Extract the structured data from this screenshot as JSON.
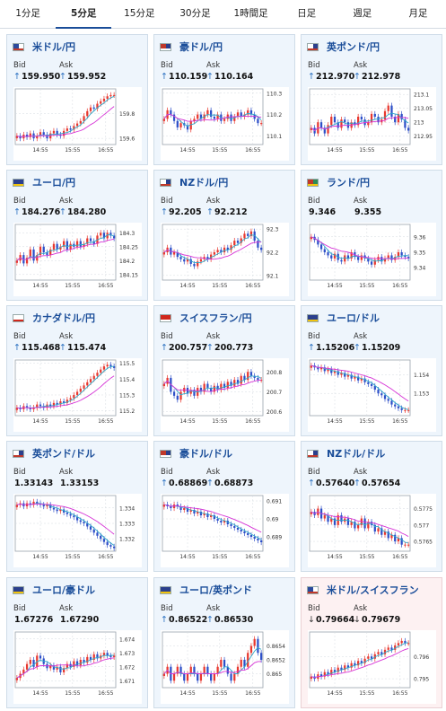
{
  "tabs": [
    "1分足",
    "5分足",
    "15分足",
    "30分足",
    "1時間足",
    "日足",
    "週足",
    "月足"
  ],
  "active_tab": "5分足",
  "labels": {
    "bid": "Bid",
    "ask": "Ask"
  },
  "colors": {
    "up": "#e8382f",
    "down": "#2d4fc8",
    "ma1": "#2fa9c9",
    "ma2": "#d633d6",
    "accent": "#1a4d99"
  },
  "cards": [
    {
      "pair": "米ドル/円",
      "flag_icon": "us-flag-icon",
      "bid": "159.950",
      "ask": "159.952",
      "dir": "up",
      "bid_arrow": "↑",
      "ask_arrow": "↑",
      "chart_data": {
        "type": "candlestick",
        "x_ticks": [
          "14:55",
          "15:55",
          "16:55"
        ],
        "y_ticks": [
          "159.8",
          "159.6"
        ],
        "ylim": [
          159.55,
          160.0
        ],
        "close": [
          159.62,
          159.6,
          159.63,
          159.61,
          159.64,
          159.6,
          159.62,
          159.65,
          159.63,
          159.6,
          159.64,
          159.66,
          159.63,
          159.62,
          159.66,
          159.68,
          159.67,
          159.7,
          159.72,
          159.74,
          159.78,
          159.82,
          159.85,
          159.84,
          159.88,
          159.9,
          159.92,
          159.94,
          159.95,
          159.95
        ]
      }
    },
    {
      "pair": "豪ドル/円",
      "flag_icon": "au-flag-icon",
      "bid": "110.159",
      "ask": "110.164",
      "dir": "up",
      "bid_arrow": "↑",
      "ask_arrow": "↑",
      "chart_data": {
        "type": "candlestick",
        "x_ticks": [
          "14:55",
          "15:55",
          "16:55"
        ],
        "y_ticks": [
          "110.3",
          "110.2",
          "110.1"
        ],
        "ylim": [
          110.06,
          110.32
        ],
        "close": [
          110.18,
          110.22,
          110.2,
          110.17,
          110.14,
          110.16,
          110.15,
          110.13,
          110.17,
          110.18,
          110.2,
          110.18,
          110.2,
          110.22,
          110.19,
          110.18,
          110.2,
          110.17,
          110.18,
          110.2,
          110.17,
          110.19,
          110.21,
          110.19,
          110.2,
          110.22,
          110.2,
          110.18,
          110.16,
          110.16
        ]
      }
    },
    {
      "pair": "英ポンド/円",
      "flag_icon": "gb-flag-icon",
      "bid": "212.970",
      "ask": "212.978",
      "dir": "up",
      "bid_arrow": "↑",
      "ask_arrow": "↑",
      "chart_data": {
        "type": "candlestick",
        "x_ticks": [
          "14:55",
          "15:55",
          "16:55"
        ],
        "y_ticks": [
          "213.1",
          "213.05",
          "213",
          "212.95"
        ],
        "ylim": [
          212.92,
          213.12
        ],
        "close": [
          212.98,
          212.96,
          213.0,
          212.98,
          212.96,
          212.99,
          213.02,
          213.0,
          212.98,
          213.01,
          213.0,
          212.98,
          213.0,
          212.99,
          213.02,
          213.01,
          212.99,
          213.0,
          213.03,
          213.02,
          213.0,
          213.01,
          213.04,
          213.06,
          213.02,
          213.0,
          213.03,
          213.01,
          212.98,
          212.97
        ]
      }
    },
    {
      "pair": "ユーロ/円",
      "flag_icon": "eu-flag-icon",
      "bid": "184.276",
      "ask": "184.280",
      "dir": "up",
      "bid_arrow": "↑",
      "ask_arrow": "↑",
      "chart_data": {
        "type": "candlestick",
        "x_ticks": [
          "14:55",
          "15:55",
          "16:55"
        ],
        "y_ticks": [
          "184.3",
          "184.25",
          "184.2",
          "184.15"
        ],
        "ylim": [
          184.13,
          184.33
        ],
        "close": [
          184.2,
          184.22,
          184.19,
          184.21,
          184.24,
          184.2,
          184.22,
          184.25,
          184.23,
          184.22,
          184.24,
          184.26,
          184.24,
          184.25,
          184.27,
          184.24,
          184.26,
          184.25,
          184.27,
          184.25,
          184.26,
          184.28,
          184.27,
          184.26,
          184.29,
          184.3,
          184.28,
          184.3,
          184.29,
          184.28
        ]
      }
    },
    {
      "pair": "NZドル/円",
      "flag_icon": "nz-flag-icon",
      "bid": "92.205",
      "ask": "92.212",
      "dir": "up",
      "bid_arrow": "↑",
      "ask_arrow": "↑",
      "chart_data": {
        "type": "candlestick",
        "x_ticks": [
          "14:55",
          "15:55",
          "16:55"
        ],
        "y_ticks": [
          "92.3",
          "92.2",
          "92.1"
        ],
        "ylim": [
          92.08,
          92.32
        ],
        "close": [
          92.2,
          92.22,
          92.19,
          92.2,
          92.18,
          92.17,
          92.16,
          92.17,
          92.15,
          92.14,
          92.16,
          92.17,
          92.18,
          92.17,
          92.19,
          92.2,
          92.21,
          92.2,
          92.22,
          92.21,
          92.23,
          92.25,
          92.24,
          92.26,
          92.28,
          92.27,
          92.29,
          92.25,
          92.22,
          92.21
        ]
      }
    },
    {
      "pair": "ランド/円",
      "flag_icon": "za-flag-icon",
      "bid": "9.346",
      "ask": "9.355",
      "dir": "none",
      "bid_arrow": "",
      "ask_arrow": "",
      "chart_data": {
        "type": "candlestick",
        "x_ticks": [
          "14:55",
          "15:55",
          "16:55"
        ],
        "y_ticks": [
          "9.36",
          "9.35",
          "9.34"
        ],
        "ylim": [
          9.332,
          9.368
        ],
        "close": [
          9.36,
          9.358,
          9.355,
          9.352,
          9.35,
          9.348,
          9.346,
          9.349,
          9.345,
          9.344,
          9.348,
          9.346,
          9.35,
          9.347,
          9.345,
          9.348,
          9.346,
          9.344,
          9.342,
          9.345,
          9.347,
          9.344,
          9.346,
          9.348,
          9.345,
          9.347,
          9.35,
          9.348,
          9.347,
          9.346
        ]
      }
    },
    {
      "pair": "カナダドル/円",
      "flag_icon": "ca-flag-icon",
      "bid": "115.468",
      "ask": "115.474",
      "dir": "up",
      "bid_arrow": "↑",
      "ask_arrow": "↑",
      "chart_data": {
        "type": "candlestick",
        "x_ticks": [
          "14:55",
          "15:55",
          "16:55"
        ],
        "y_ticks": [
          "115.5",
          "115.4",
          "115.3",
          "115.2"
        ],
        "ylim": [
          115.17,
          115.52
        ],
        "close": [
          115.22,
          115.21,
          115.23,
          115.22,
          115.21,
          115.22,
          115.24,
          115.23,
          115.22,
          115.24,
          115.23,
          115.25,
          115.24,
          115.26,
          115.25,
          115.27,
          115.28,
          115.3,
          115.32,
          115.34,
          115.36,
          115.38,
          115.4,
          115.42,
          115.44,
          115.46,
          115.48,
          115.49,
          115.48,
          115.47
        ]
      }
    },
    {
      "pair": "スイスフラン/円",
      "flag_icon": "ch-flag-icon",
      "bid": "200.757",
      "ask": "200.773",
      "dir": "up",
      "bid_arrow": "↑",
      "ask_arrow": "↑",
      "chart_data": {
        "type": "candlestick",
        "x_ticks": [
          "14:55",
          "15:55",
          "16:55"
        ],
        "y_ticks": [
          "200.8",
          "200.7",
          "200.6"
        ],
        "ylim": [
          200.58,
          200.86
        ],
        "close": [
          200.74,
          200.77,
          200.7,
          200.68,
          200.66,
          200.7,
          200.72,
          200.69,
          200.71,
          200.68,
          200.72,
          200.7,
          200.74,
          200.72,
          200.7,
          200.73,
          200.71,
          200.74,
          200.72,
          200.75,
          200.73,
          200.76,
          200.74,
          200.78,
          200.76,
          200.8,
          200.78,
          200.77,
          200.76,
          200.76
        ]
      }
    },
    {
      "pair": "ユーロ/ドル",
      "flag_icon": "eu-flag-icon",
      "bid": "1.15206",
      "ask": "1.15209",
      "dir": "up",
      "bid_arrow": "↑",
      "ask_arrow": "↑",
      "chart_data": {
        "type": "candlestick",
        "x_ticks": [
          "14:55",
          "15:55",
          "16:55"
        ],
        "y_ticks": [
          "1.154",
          "1.153"
        ],
        "ylim": [
          1.1518,
          1.1548
        ],
        "close": [
          1.1545,
          1.1544,
          1.1543,
          1.1544,
          1.1542,
          1.1543,
          1.1541,
          1.1542,
          1.154,
          1.1541,
          1.1539,
          1.154,
          1.1538,
          1.1539,
          1.1537,
          1.1538,
          1.1536,
          1.1535,
          1.1534,
          1.1532,
          1.153,
          1.1529,
          1.1527,
          1.1526,
          1.1524,
          1.1523,
          1.1522,
          1.1521,
          1.1521,
          1.1521
        ]
      }
    },
    {
      "pair": "英ポンド/ドル",
      "flag_icon": "gb-flag-icon",
      "bid": "1.33143",
      "ask": "1.33153",
      "dir": "none",
      "bid_arrow": "",
      "ask_arrow": "",
      "chart_data": {
        "type": "candlestick",
        "x_ticks": [
          "14:55",
          "15:55",
          "16:55"
        ],
        "y_ticks": [
          "1.334",
          "1.333",
          "1.332"
        ],
        "ylim": [
          1.3312,
          1.3348
        ],
        "close": [
          1.3342,
          1.3343,
          1.3341,
          1.3343,
          1.3342,
          1.3344,
          1.3343,
          1.3342,
          1.3341,
          1.3342,
          1.334,
          1.3339,
          1.3338,
          1.3339,
          1.3337,
          1.3336,
          1.3335,
          1.3334,
          1.3332,
          1.3331,
          1.333,
          1.3328,
          1.3326,
          1.3324,
          1.3322,
          1.332,
          1.3318,
          1.3316,
          1.3315,
          1.3314
        ]
      }
    },
    {
      "pair": "豪ドル/ドル",
      "flag_icon": "au-flag-icon",
      "bid": "0.68869",
      "ask": "0.68873",
      "dir": "up",
      "bid_arrow": "↑",
      "ask_arrow": "↑",
      "chart_data": {
        "type": "candlestick",
        "x_ticks": [
          "14:55",
          "15:55",
          "16:55"
        ],
        "y_ticks": [
          "0.691",
          "0.69",
          "0.689"
        ],
        "ylim": [
          0.6882,
          0.6913
        ],
        "close": [
          0.6908,
          0.6907,
          0.6906,
          0.6908,
          0.6907,
          0.6905,
          0.6906,
          0.6904,
          0.6905,
          0.6903,
          0.6904,
          0.6902,
          0.6903,
          0.6901,
          0.6902,
          0.69,
          0.6899,
          0.6898,
          0.6899,
          0.6897,
          0.6896,
          0.6895,
          0.6894,
          0.6893,
          0.6892,
          0.6891,
          0.689,
          0.6889,
          0.6888,
          0.6887
        ]
      }
    },
    {
      "pair": "NZドル/ドル",
      "flag_icon": "nz-flag-icon",
      "bid": "0.57640",
      "ask": "0.57654",
      "dir": "up",
      "bid_arrow": "↑",
      "ask_arrow": "↑",
      "chart_data": {
        "type": "candlestick",
        "x_ticks": [
          "14:55",
          "15:55",
          "16:55"
        ],
        "y_ticks": [
          "0.5775",
          "0.577",
          "0.5765"
        ],
        "ylim": [
          0.5762,
          0.5779
        ],
        "close": [
          0.5774,
          0.5773,
          0.5775,
          0.5772,
          0.5773,
          0.5771,
          0.5772,
          0.577,
          0.5773,
          0.5771,
          0.5772,
          0.577,
          0.5771,
          0.5769,
          0.577,
          0.5772,
          0.5769,
          0.5771,
          0.577,
          0.5768,
          0.5769,
          0.5767,
          0.5768,
          0.5766,
          0.5767,
          0.5765,
          0.5766,
          0.5764,
          0.5764,
          0.5764
        ]
      }
    },
    {
      "pair": "ユーロ/豪ドル",
      "flag_icon": "eu-flag-icon",
      "bid": "1.67276",
      "ask": "1.67290",
      "dir": "none",
      "bid_arrow": "",
      "ask_arrow": "",
      "chart_data": {
        "type": "candlestick",
        "x_ticks": [
          "14:55",
          "15:55",
          "16:55"
        ],
        "y_ticks": [
          "1.674",
          "1.673",
          "1.672",
          "1.671"
        ],
        "ylim": [
          1.6705,
          1.6745
        ],
        "close": [
          1.6712,
          1.6715,
          1.6718,
          1.6722,
          1.6725,
          1.672,
          1.6728,
          1.6726,
          1.6722,
          1.6719,
          1.6721,
          1.6718,
          1.672,
          1.6716,
          1.6719,
          1.6722,
          1.672,
          1.6724,
          1.6721,
          1.6725,
          1.6723,
          1.6727,
          1.6725,
          1.6729,
          1.6726,
          1.6728,
          1.673,
          1.6728,
          1.6727,
          1.6728
        ]
      }
    },
    {
      "pair": "ユーロ/英ポンド",
      "flag_icon": "eu-flag-icon",
      "bid": "0.86522",
      "ask": "0.86530",
      "dir": "up",
      "bid_arrow": "↑",
      "ask_arrow": "↑",
      "chart_data": {
        "type": "candlestick",
        "x_ticks": [
          "14:55",
          "15:55",
          "16:55"
        ],
        "y_ticks": [
          "0.8654",
          "0.8652",
          "0.865"
        ],
        "ylim": [
          0.8648,
          0.8656
        ],
        "close": [
          0.865,
          0.8651,
          0.8649,
          0.865,
          0.8651,
          0.865,
          0.8649,
          0.865,
          0.8651,
          0.865,
          0.8649,
          0.865,
          0.8651,
          0.865,
          0.8649,
          0.865,
          0.8651,
          0.8652,
          0.8651,
          0.865,
          0.8649,
          0.865,
          0.8651,
          0.8652,
          0.8651,
          0.8653,
          0.8654,
          0.8655,
          0.8653,
          0.8652
        ]
      }
    },
    {
      "pair": "米ドル/スイスフラン",
      "flag_icon": "us-flag-icon",
      "bid": "0.79664",
      "ask": "0.79679",
      "dir": "down",
      "bid_arrow": "↓",
      "ask_arrow": "↓",
      "chart_data": {
        "type": "candlestick",
        "x_ticks": [
          "14:55",
          "15:55",
          "16:55"
        ],
        "y_ticks": [
          "0.796",
          "0.795"
        ],
        "ylim": [
          0.7946,
          0.7971
        ],
        "close": [
          0.7951,
          0.795,
          0.7952,
          0.7951,
          0.7953,
          0.7952,
          0.7954,
          0.7953,
          0.7955,
          0.7954,
          0.7956,
          0.7955,
          0.7957,
          0.7956,
          0.7958,
          0.7957,
          0.7959,
          0.796,
          0.7959,
          0.7961,
          0.7962,
          0.7961,
          0.7963,
          0.7964,
          0.7963,
          0.7965,
          0.7966,
          0.7967,
          0.7966,
          0.7966
        ]
      }
    }
  ]
}
